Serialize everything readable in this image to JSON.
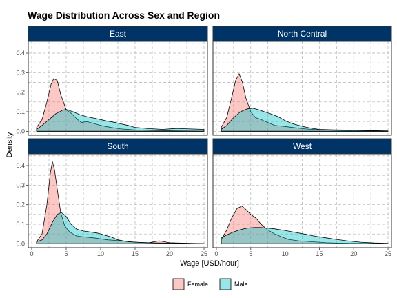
{
  "chart_data": {
    "type": "area",
    "title": "Wage Distribution Across Sex and Region",
    "xlabel": "Wage [USD/hour]",
    "ylabel": "Density",
    "xlim": [
      -0.5,
      25.5
    ],
    "ylim": [
      -0.02,
      0.46
    ],
    "x_ticks": [
      0,
      5,
      10,
      15,
      20,
      25
    ],
    "y_ticks": [
      0.0,
      0.1,
      0.2,
      0.3,
      0.4
    ],
    "grid": true,
    "legend_position": "bottom",
    "series_names": [
      "Female",
      "Male"
    ],
    "colors": {
      "Female": "#F8766D",
      "Male": "#00BFC4",
      "strip": "#003366",
      "panel_border": "#333333"
    },
    "panels": [
      {
        "region": "East",
        "series": [
          {
            "name": "Female",
            "x": [
              0.7,
              1.5,
              2.2,
              2.8,
              3.2,
              3.7,
              4.2,
              5.0,
              5.8,
              6.5,
              7.2,
              8.0,
              9.0,
              10.0,
              11.5,
              13,
              15,
              17,
              20,
              22,
              25
            ],
            "y": [
              0.02,
              0.06,
              0.15,
              0.24,
              0.27,
              0.26,
              0.19,
              0.11,
              0.09,
              0.065,
              0.045,
              0.05,
              0.04,
              0.03,
              0.02,
              0.012,
              0.007,
              0.005,
              0.003,
              0.002,
              0.001
            ]
          },
          {
            "name": "Male",
            "x": [
              0.7,
              1.5,
              2.5,
              3.5,
              4.5,
              5.0,
              6.0,
              7.0,
              8.0,
              9.0,
              10.0,
              11.0,
              12.0,
              13,
              14,
              15,
              17,
              19,
              21,
              23,
              25
            ],
            "y": [
              0.01,
              0.03,
              0.06,
              0.09,
              0.108,
              0.112,
              0.1,
              0.085,
              0.075,
              0.068,
              0.06,
              0.052,
              0.046,
              0.038,
              0.03,
              0.02,
              0.014,
              0.01,
              0.015,
              0.012,
              0.01
            ]
          }
        ]
      },
      {
        "region": "North Central",
        "series": [
          {
            "name": "Female",
            "x": [
              0.7,
              1.5,
              2.2,
              2.8,
              3.3,
              3.8,
              4.3,
              5.0,
              5.7,
              6.5,
              7.5,
              8.5,
              10,
              11.5,
              13,
              15,
              17,
              20,
              25
            ],
            "y": [
              0.02,
              0.07,
              0.17,
              0.26,
              0.295,
              0.25,
              0.17,
              0.1,
              0.07,
              0.06,
              0.045,
              0.03,
              0.025,
              0.018,
              0.012,
              0.008,
              0.005,
              0.003,
              0.001
            ]
          },
          {
            "name": "Male",
            "x": [
              0.7,
              1.5,
              2.5,
              3.5,
              4.5,
              5.3,
              6.0,
              7.0,
              8.0,
              9.0,
              10,
              11,
              12,
              13,
              14,
              15,
              17,
              20,
              22,
              25
            ],
            "y": [
              0.01,
              0.03,
              0.07,
              0.1,
              0.115,
              0.118,
              0.112,
              0.1,
              0.088,
              0.075,
              0.055,
              0.04,
              0.03,
              0.022,
              0.015,
              0.01,
              0.008,
              0.006,
              0.004,
              0.002
            ]
          }
        ]
      },
      {
        "region": "South",
        "series": [
          {
            "name": "Female",
            "x": [
              0.7,
              1.5,
              2.2,
              2.7,
              3.0,
              3.3,
              3.7,
              4.2,
              4.8,
              5.5,
              6.5,
              7.5,
              9,
              11,
              13,
              15,
              17,
              18.5,
              20,
              25
            ],
            "y": [
              0.01,
              0.05,
              0.2,
              0.36,
              0.42,
              0.38,
              0.28,
              0.16,
              0.09,
              0.06,
              0.04,
              0.035,
              0.03,
              0.02,
              0.015,
              0.008,
              0.005,
              0.015,
              0.005,
              0.001
            ]
          },
          {
            "name": "Male",
            "x": [
              0.7,
              1.5,
              2.2,
              3.0,
              3.7,
              4.3,
              5.0,
              5.7,
              6.5,
              7.5,
              8.5,
              9.5,
              10.5,
              11.5,
              12.5,
              14,
              16,
              18,
              20,
              22,
              25
            ],
            "y": [
              0.01,
              0.02,
              0.05,
              0.11,
              0.15,
              0.16,
              0.14,
              0.1,
              0.075,
              0.065,
              0.06,
              0.055,
              0.045,
              0.035,
              0.02,
              0.01,
              0.006,
              0.004,
              0.003,
              0.002,
              0.001
            ]
          }
        ]
      },
      {
        "region": "West",
        "series": [
          {
            "name": "Female",
            "x": [
              0.7,
              1.5,
              2.2,
              3.0,
              3.7,
              4.3,
              5.0,
              5.8,
              6.5,
              7.5,
              8.5,
              9.5,
              10.5,
              12,
              14,
              16,
              18,
              20,
              25
            ],
            "y": [
              0.02,
              0.07,
              0.13,
              0.18,
              0.193,
              0.175,
              0.15,
              0.13,
              0.1,
              0.07,
              0.05,
              0.035,
              0.022,
              0.015,
              0.01,
              0.005,
              0.003,
              0.002,
              0.001
            ]
          },
          {
            "name": "Male",
            "x": [
              0.7,
              1.5,
              2.5,
              3.5,
              4.5,
              5.5,
              6.5,
              7.5,
              8.5,
              10,
              11.5,
              13,
              14.5,
              16,
              17.5,
              19,
              21,
              23,
              25
            ],
            "y": [
              0.03,
              0.045,
              0.06,
              0.072,
              0.08,
              0.083,
              0.083,
              0.08,
              0.076,
              0.068,
              0.058,
              0.048,
              0.038,
              0.03,
              0.022,
              0.015,
              0.008,
              0.004,
              0.002
            ]
          }
        ]
      }
    ]
  }
}
